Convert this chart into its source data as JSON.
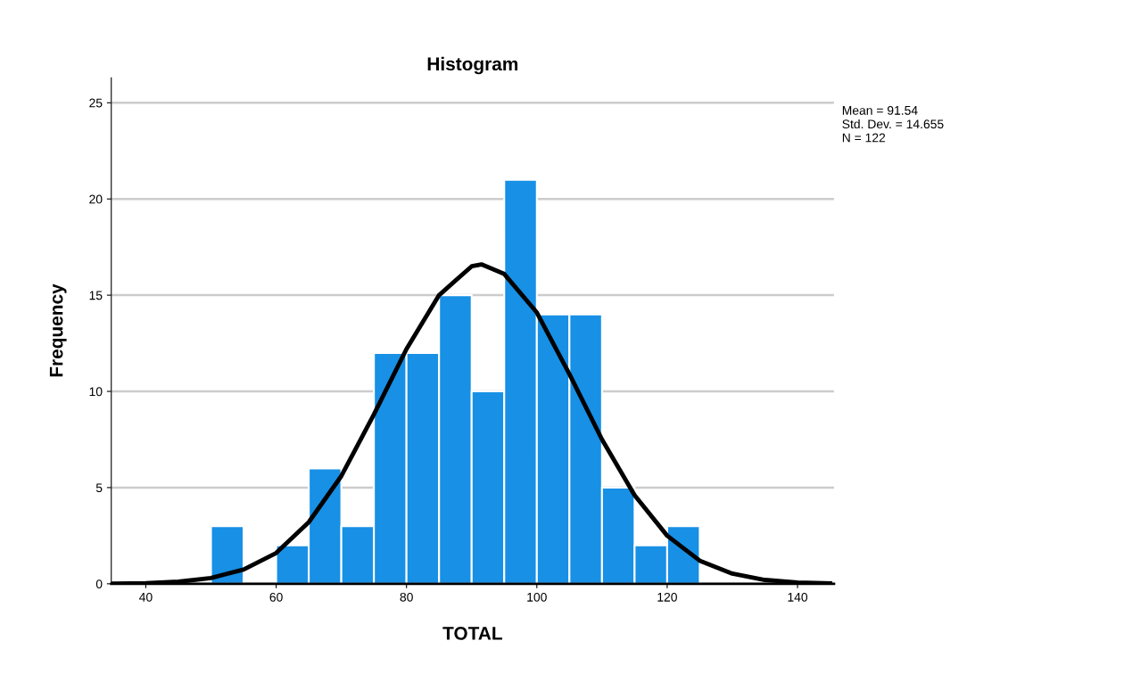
{
  "chart_data": {
    "type": "histogram",
    "title": "Histogram",
    "xlabel": "TOTAL",
    "ylabel": "Frequency",
    "bins": [
      50,
      55,
      60,
      65,
      70,
      75,
      80,
      85,
      90,
      95,
      100,
      105,
      110,
      115,
      120,
      125
    ],
    "values": [
      3,
      0,
      2,
      6,
      3,
      12,
      12,
      15,
      10,
      21,
      14,
      14,
      5,
      2,
      3
    ],
    "color": "#1790e6",
    "series": [
      {
        "type": "line",
        "color": "#000000",
        "x": [
          35,
          40,
          45,
          50,
          55,
          60,
          65,
          70,
          75,
          80,
          85,
          90,
          91.5,
          95,
          100,
          105,
          110,
          115,
          120,
          125,
          130,
          135,
          140,
          145
        ],
        "values": [
          0.01,
          0.03,
          0.11,
          0.3,
          0.74,
          1.6,
          3.2,
          5.6,
          8.8,
          12.2,
          15.0,
          16.5,
          16.6,
          16.1,
          14.1,
          10.9,
          7.5,
          4.6,
          2.5,
          1.2,
          0.53,
          0.2,
          0.07,
          0.02
        ]
      }
    ],
    "xlim": [
      34.7,
      145.6
    ],
    "ylim": [
      0,
      26.3
    ],
    "xticks": [
      40,
      60,
      80,
      100,
      120,
      140
    ],
    "yticks": [
      0,
      5,
      10,
      15,
      20,
      25
    ],
    "grid": "y",
    "marker": "none",
    "line_style": "solid",
    "annotations": [
      "Mean = 91.54",
      "Std. Dev. = 14.655",
      "N = 122"
    ]
  }
}
